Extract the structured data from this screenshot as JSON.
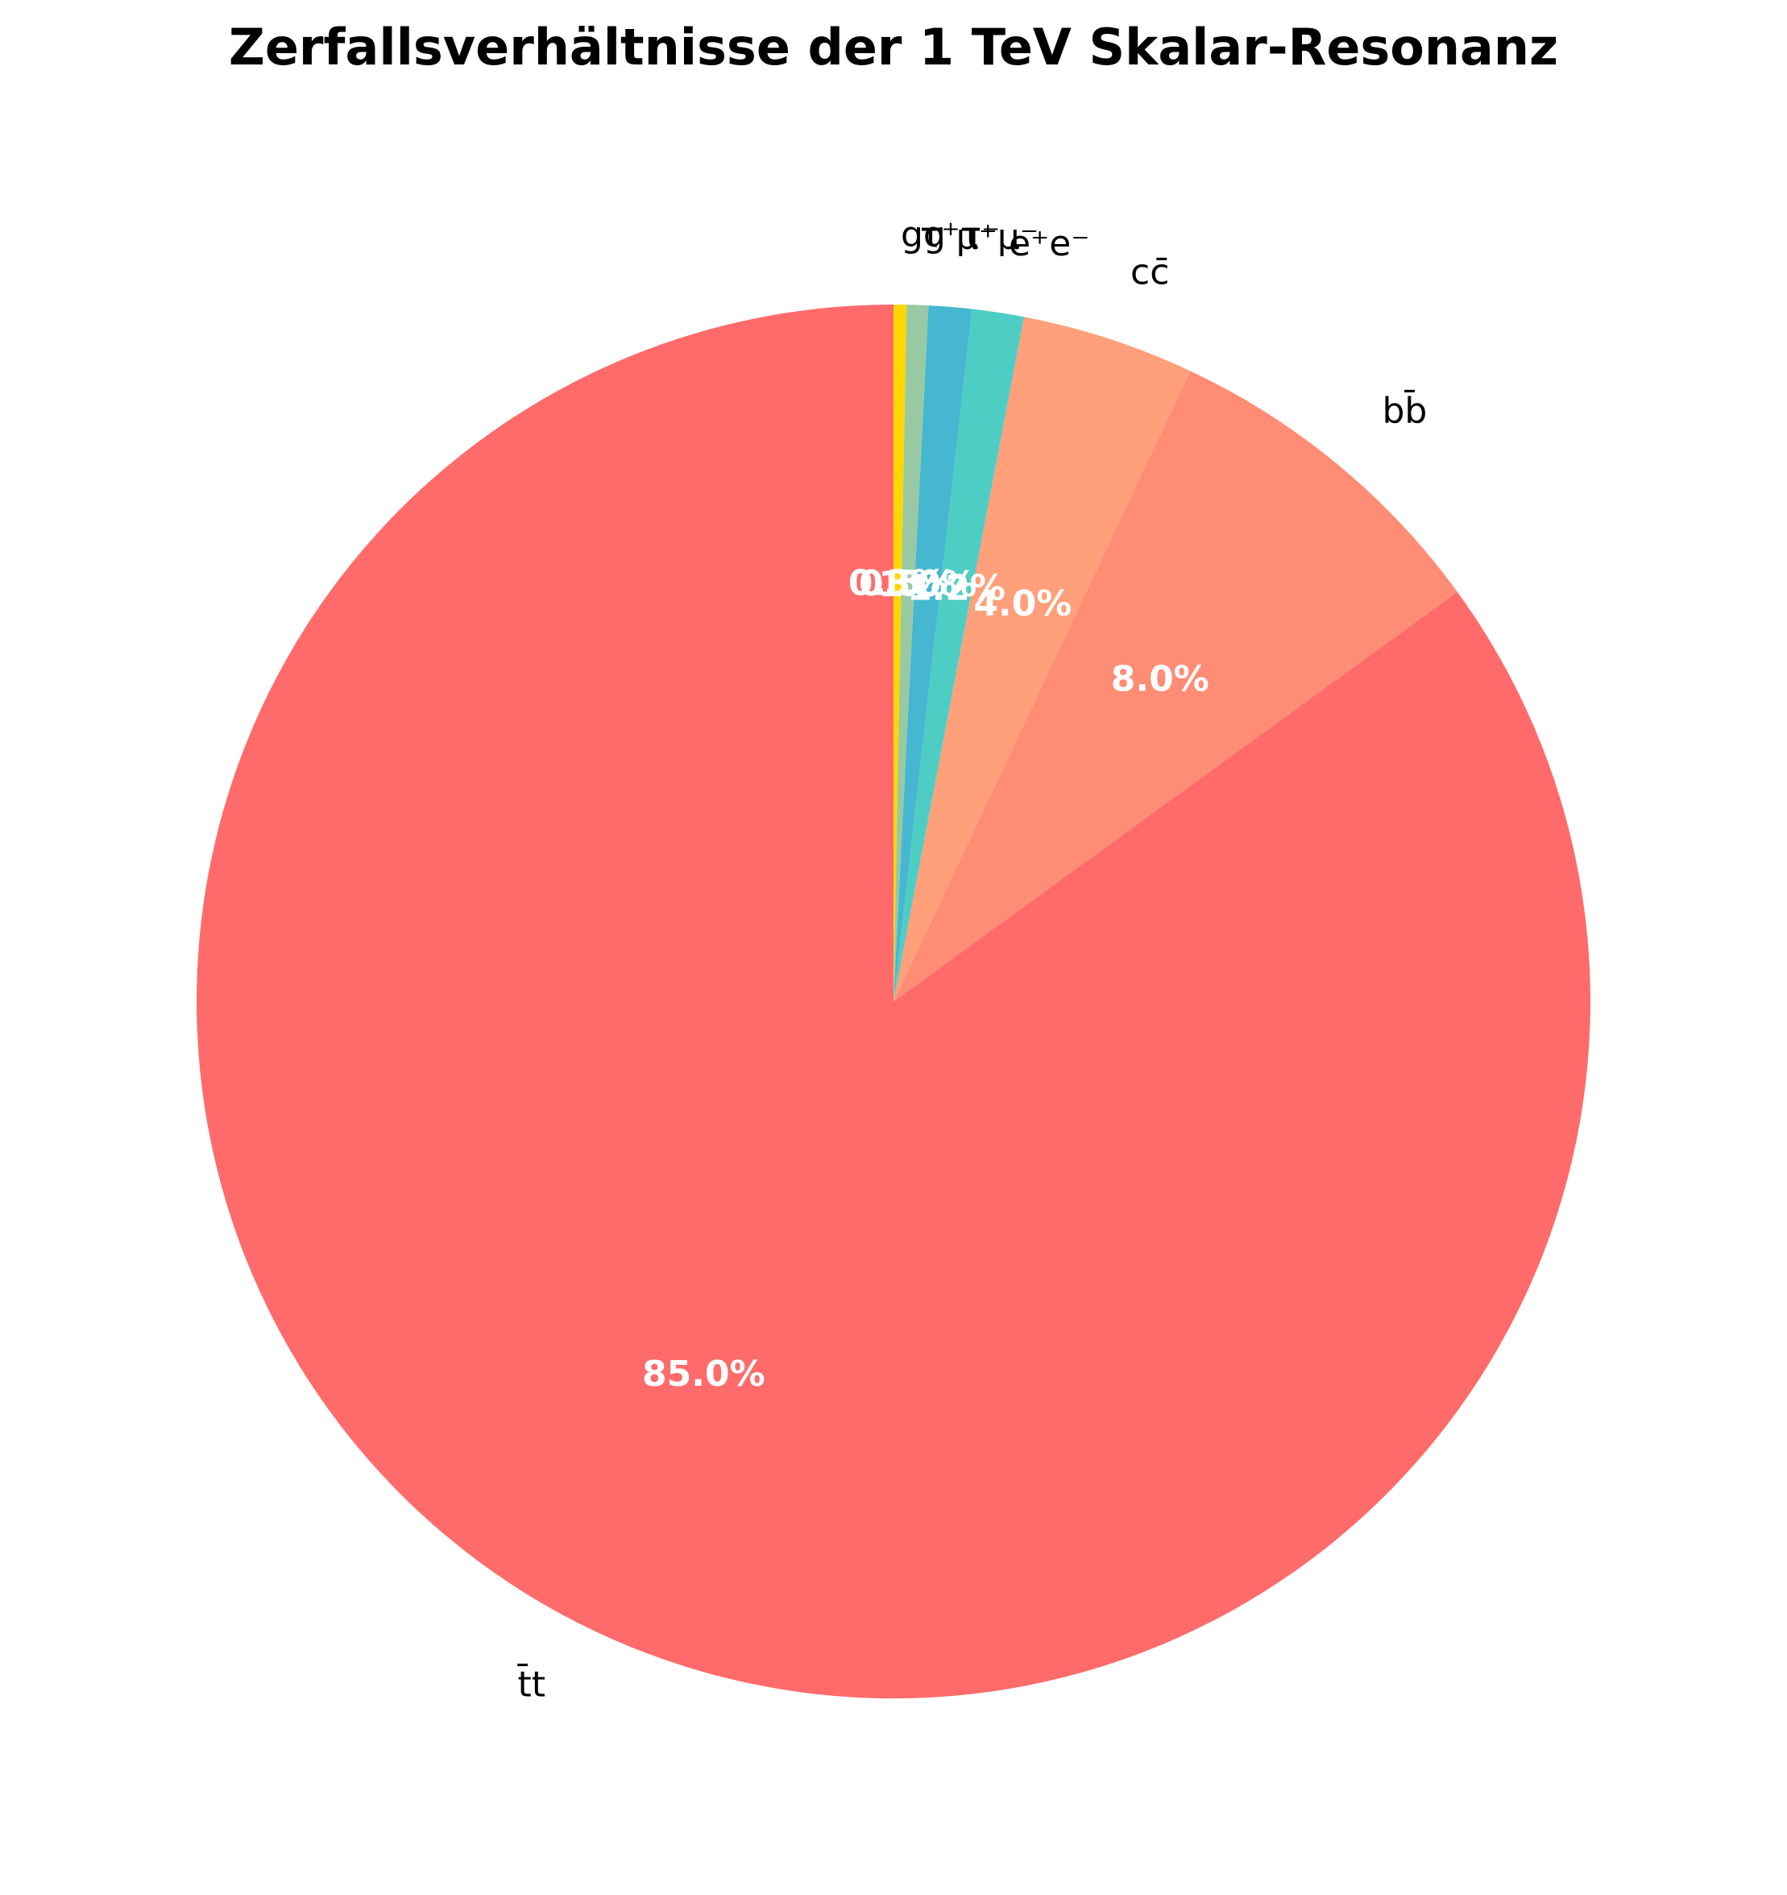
{
  "chart_data": {
    "type": "pie",
    "title": "Zerfallsverhältnisse der 1 TeV Skalar-Resonanz",
    "categories": [
      "t̄t",
      "bb̄",
      "cc̄",
      "e⁺e⁻",
      "μ⁺μ⁻",
      "τ⁺τ⁻",
      "gg"
    ],
    "values": [
      85.0,
      8.0,
      4.0,
      1.2,
      1.0,
      0.5,
      0.3
    ],
    "percent_labels": [
      "85.0%",
      "8.0%",
      "4.0%",
      "1.2%",
      "1.0%",
      "0.5%",
      "0.3%"
    ],
    "colors": [
      "#FF6B6B",
      "#FF8C74",
      "#FFA07A",
      "#4ECDC4",
      "#45B7D1",
      "#98C9A3",
      "#FFD700"
    ],
    "start_angle_deg": 90,
    "direction": "counterclockwise"
  }
}
